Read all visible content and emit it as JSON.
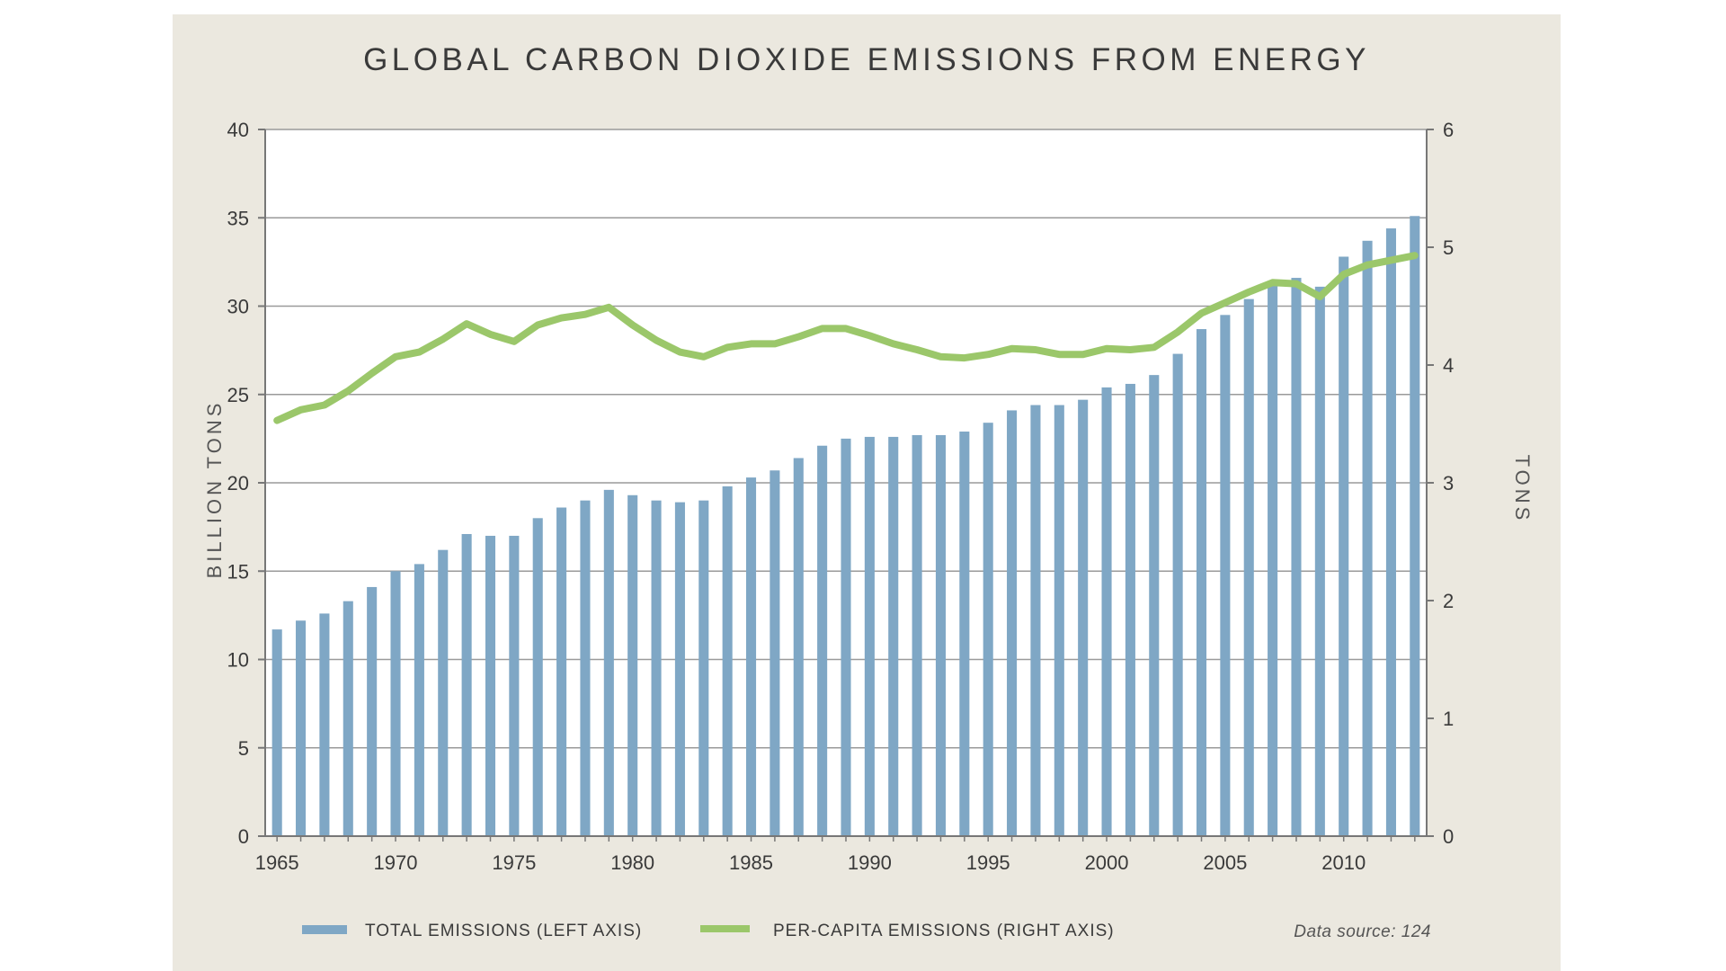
{
  "chart_data": {
    "type": "bar",
    "title": "GLOBAL CARBON DIOXIDE EMISSIONS FROM ENERGY",
    "ylabel": "BILLION TONS",
    "y2label": "TONS",
    "ylim": [
      0,
      40
    ],
    "y2lim": [
      0,
      6
    ],
    "yticks": [
      "0",
      "5",
      "10",
      "15",
      "20",
      "25",
      "30",
      "35",
      "40"
    ],
    "y2ticks": [
      "0",
      "1",
      "2",
      "3",
      "4",
      "5",
      "6"
    ],
    "xticks": [
      "1965",
      "1970",
      "1975",
      "1980",
      "1985",
      "1990",
      "1995",
      "2000",
      "2005",
      "2010"
    ],
    "grid": true,
    "x": [
      1965,
      1966,
      1967,
      1968,
      1969,
      1970,
      1971,
      1972,
      1973,
      1974,
      1975,
      1976,
      1977,
      1978,
      1979,
      1980,
      1981,
      1982,
      1983,
      1984,
      1985,
      1986,
      1987,
      1988,
      1989,
      1990,
      1991,
      1992,
      1993,
      1994,
      1995,
      1996,
      1997,
      1998,
      1999,
      2000,
      2001,
      2002,
      2003,
      2004,
      2005,
      2006,
      2007,
      2008,
      2009,
      2010,
      2011,
      2012,
      2013
    ],
    "series": [
      {
        "name": "TOTAL EMISSIONS (LEFT AXIS)",
        "type": "bar",
        "axis": "left",
        "color": "#7fa7c5",
        "values": [
          11.7,
          12.2,
          12.6,
          13.3,
          14.1,
          15.0,
          15.4,
          16.2,
          17.1,
          17.0,
          17.0,
          18.0,
          18.6,
          19.0,
          19.6,
          19.3,
          19.0,
          18.9,
          19.0,
          19.8,
          20.3,
          20.7,
          21.4,
          22.1,
          22.5,
          22.6,
          22.6,
          22.7,
          22.7,
          22.9,
          23.4,
          24.1,
          24.4,
          24.4,
          24.7,
          25.4,
          25.6,
          26.1,
          27.3,
          28.7,
          29.5,
          30.4,
          31.2,
          31.6,
          31.1,
          32.8,
          33.7,
          34.4,
          35.1
        ]
      },
      {
        "name": "PER-CAPITA EMISSIONS (RIGHT AXIS)",
        "type": "line",
        "axis": "right",
        "color": "#9bc76a",
        "values": [
          3.53,
          3.62,
          3.66,
          3.78,
          3.93,
          4.07,
          4.11,
          4.22,
          4.35,
          4.26,
          4.2,
          4.34,
          4.4,
          4.43,
          4.49,
          4.34,
          4.21,
          4.11,
          4.07,
          4.15,
          4.18,
          4.18,
          4.24,
          4.31,
          4.31,
          4.25,
          4.18,
          4.13,
          4.07,
          4.06,
          4.09,
          4.14,
          4.13,
          4.09,
          4.09,
          4.14,
          4.13,
          4.15,
          4.28,
          4.44,
          4.53,
          4.62,
          4.7,
          4.69,
          4.58,
          4.77,
          4.85,
          4.89,
          4.93
        ]
      }
    ]
  },
  "source_note": "Data source: 124"
}
